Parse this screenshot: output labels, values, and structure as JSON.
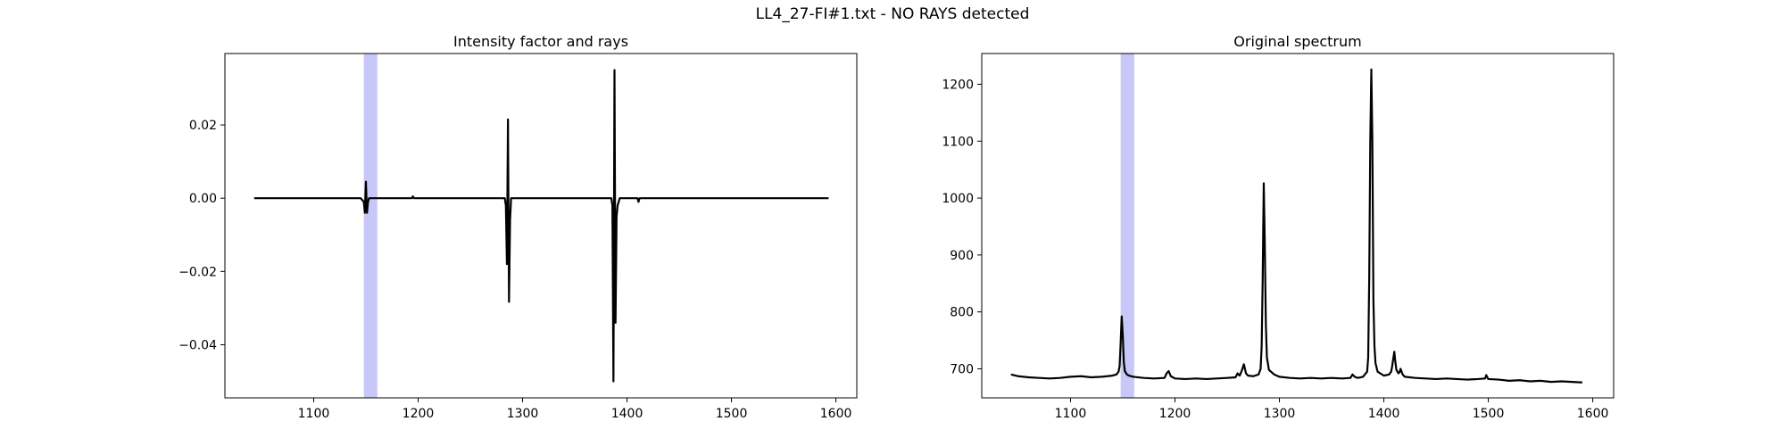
{
  "figure": {
    "title": "LL4_27-FI#1.txt - NO RAYS detected"
  },
  "chart_data": [
    {
      "type": "line",
      "title": "Intensity factor and rays",
      "xlabel": "",
      "ylabel": "",
      "xlim": [
        1015,
        1620
      ],
      "ylim": [
        -0.0545,
        0.0395
      ],
      "xticks": [
        1100,
        1200,
        1300,
        1400,
        1500,
        1600
      ],
      "yticks": [
        -0.04,
        -0.02,
        0.0,
        0.02
      ],
      "ytick_labels": [
        "−0.04",
        "−0.02",
        "0.00",
        "0.02"
      ],
      "grid": false,
      "highlight_band": {
        "x": [
          1148,
          1161
        ],
        "color": "#c8c8f8"
      },
      "series": [
        {
          "color": "#000000",
          "x": [
            1043,
            1100,
            1145,
            1148,
            1149,
            1150,
            1151,
            1152,
            1153,
            1154,
            1160,
            1194,
            1195,
            1196,
            1260,
            1283,
            1284,
            1285,
            1286,
            1287,
            1288,
            1289,
            1295,
            1385,
            1386,
            1387,
            1388,
            1389,
            1390,
            1391,
            1392,
            1393,
            1400,
            1410,
            1411,
            1412,
            1420,
            1500,
            1593
          ],
          "y": [
            0.0,
            0.0,
            0.0,
            -0.001,
            -0.004,
            0.0045,
            -0.004,
            -0.001,
            0.0,
            0.0,
            0.0,
            0.0,
            0.0005,
            0.0,
            0.0,
            0.0,
            -0.002,
            -0.018,
            0.0215,
            -0.0283,
            -0.006,
            0.0,
            0.0,
            0.0,
            -0.002,
            -0.05,
            0.035,
            -0.034,
            -0.005,
            -0.002,
            -0.001,
            0.0,
            0.0,
            0.0,
            -0.001,
            0.0,
            0.0,
            0.0,
            0.0
          ]
        }
      ]
    },
    {
      "type": "line",
      "title": "Original spectrum",
      "xlabel": "",
      "ylabel": "",
      "xlim": [
        1015,
        1620
      ],
      "ylim": [
        649,
        1254
      ],
      "xticks": [
        1100,
        1200,
        1300,
        1400,
        1500,
        1600
      ],
      "yticks": [
        700,
        800,
        900,
        1000,
        1100,
        1200
      ],
      "grid": false,
      "highlight_band": {
        "x": [
          1148,
          1161
        ],
        "color": "#c8c8f8"
      },
      "series": [
        {
          "color": "#000000",
          "x": [
            1043,
            1050,
            1060,
            1070,
            1080,
            1090,
            1100,
            1110,
            1120,
            1130,
            1140,
            1144,
            1146,
            1147,
            1148,
            1149,
            1150,
            1151,
            1152,
            1154,
            1156,
            1160,
            1170,
            1180,
            1190,
            1192,
            1194,
            1196,
            1200,
            1210,
            1220,
            1230,
            1240,
            1250,
            1258,
            1260,
            1262,
            1264,
            1266,
            1268,
            1270,
            1275,
            1280,
            1282,
            1283,
            1284,
            1285,
            1286,
            1287,
            1288,
            1290,
            1295,
            1300,
            1310,
            1320,
            1330,
            1340,
            1350,
            1360,
            1368,
            1370,
            1372,
            1375,
            1380,
            1384,
            1385,
            1386,
            1387,
            1388,
            1389,
            1390,
            1391,
            1392,
            1394,
            1400,
            1405,
            1407,
            1408,
            1409,
            1410,
            1411,
            1412,
            1414,
            1415,
            1416,
            1418,
            1420,
            1430,
            1440,
            1450,
            1460,
            1470,
            1480,
            1490,
            1497,
            1498,
            1500,
            1510,
            1520,
            1530,
            1540,
            1550,
            1560,
            1570,
            1580,
            1590
          ],
          "y": [
            690,
            687,
            685,
            684,
            683,
            684,
            686,
            687,
            685,
            686,
            688,
            690,
            695,
            705,
            745,
            792,
            760,
            712,
            696,
            690,
            688,
            686,
            684,
            683,
            684,
            692,
            696,
            687,
            683,
            682,
            683,
            682,
            683,
            684,
            685,
            692,
            688,
            697,
            708,
            692,
            688,
            687,
            690,
            700,
            740,
            860,
            1026,
            920,
            780,
            720,
            698,
            690,
            686,
            684,
            683,
            684,
            683,
            684,
            683,
            684,
            690,
            686,
            684,
            686,
            695,
            720,
            860,
            1100,
            1226,
            1100,
            820,
            740,
            710,
            695,
            688,
            690,
            695,
            705,
            718,
            730,
            712,
            698,
            692,
            694,
            700,
            690,
            686,
            684,
            683,
            682,
            683,
            682,
            681,
            682,
            683,
            689,
            682,
            681,
            679,
            680,
            678,
            679,
            677,
            678,
            677,
            676
          ]
        }
      ]
    }
  ]
}
